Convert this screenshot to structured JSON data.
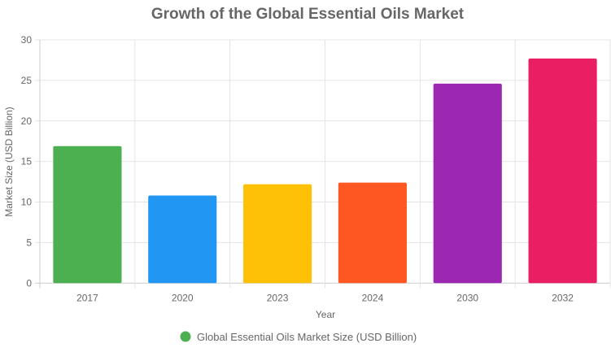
{
  "chart_data": {
    "type": "bar",
    "title": "Growth of the Global Essential Oils Market",
    "xlabel": "Year",
    "ylabel": "Market Size (USD Billion)",
    "categories": [
      "2017",
      "2020",
      "2023",
      "2024",
      "2030",
      "2032"
    ],
    "series": [
      {
        "name": "Global Essential Oils Market Size (USD Billion)",
        "values": [
          16.9,
          10.8,
          12.2,
          12.4,
          24.6,
          27.7
        ]
      }
    ],
    "colors": [
      "#4caf50",
      "#2196f3",
      "#ffc107",
      "#ff5722",
      "#9c27b0",
      "#e91e63"
    ],
    "legend_color": "#4caf50",
    "ylim": [
      0,
      30
    ],
    "yticks": [
      0,
      5,
      10,
      15,
      20,
      25,
      30
    ],
    "grid": true,
    "legend_position": "bottom"
  }
}
